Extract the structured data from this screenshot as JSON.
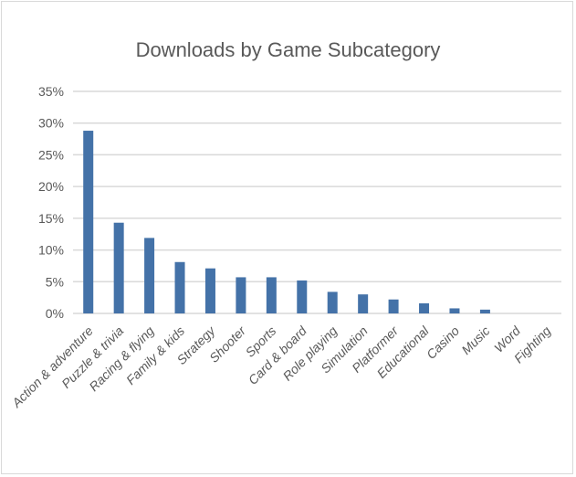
{
  "chart_data": {
    "type": "bar",
    "title": "Downloads by Game Subcategory",
    "xlabel": "",
    "ylabel": "",
    "categories": [
      "Action & adventure",
      "Puzzle & trivia",
      "Racing & flying",
      "Family & kids",
      "Strategy",
      "Shooter",
      "Sports",
      "Card & board",
      "Role playing",
      "Simulation",
      "Platformer",
      "Educational",
      "Casino",
      "Music",
      "Word",
      "Fighting"
    ],
    "values": [
      28.8,
      14.3,
      11.9,
      8.1,
      7.1,
      5.7,
      5.7,
      5.2,
      3.4,
      3.0,
      2.2,
      1.6,
      0.8,
      0.6,
      0,
      0
    ],
    "ylim": [
      0,
      35
    ],
    "yticks": [
      "0%",
      "5%",
      "10%",
      "15%",
      "20%",
      "25%",
      "30%",
      "35%"
    ],
    "grid": true,
    "legend": "none",
    "bar_color": "#4472a8",
    "grid_color": "#d9d9d9"
  }
}
